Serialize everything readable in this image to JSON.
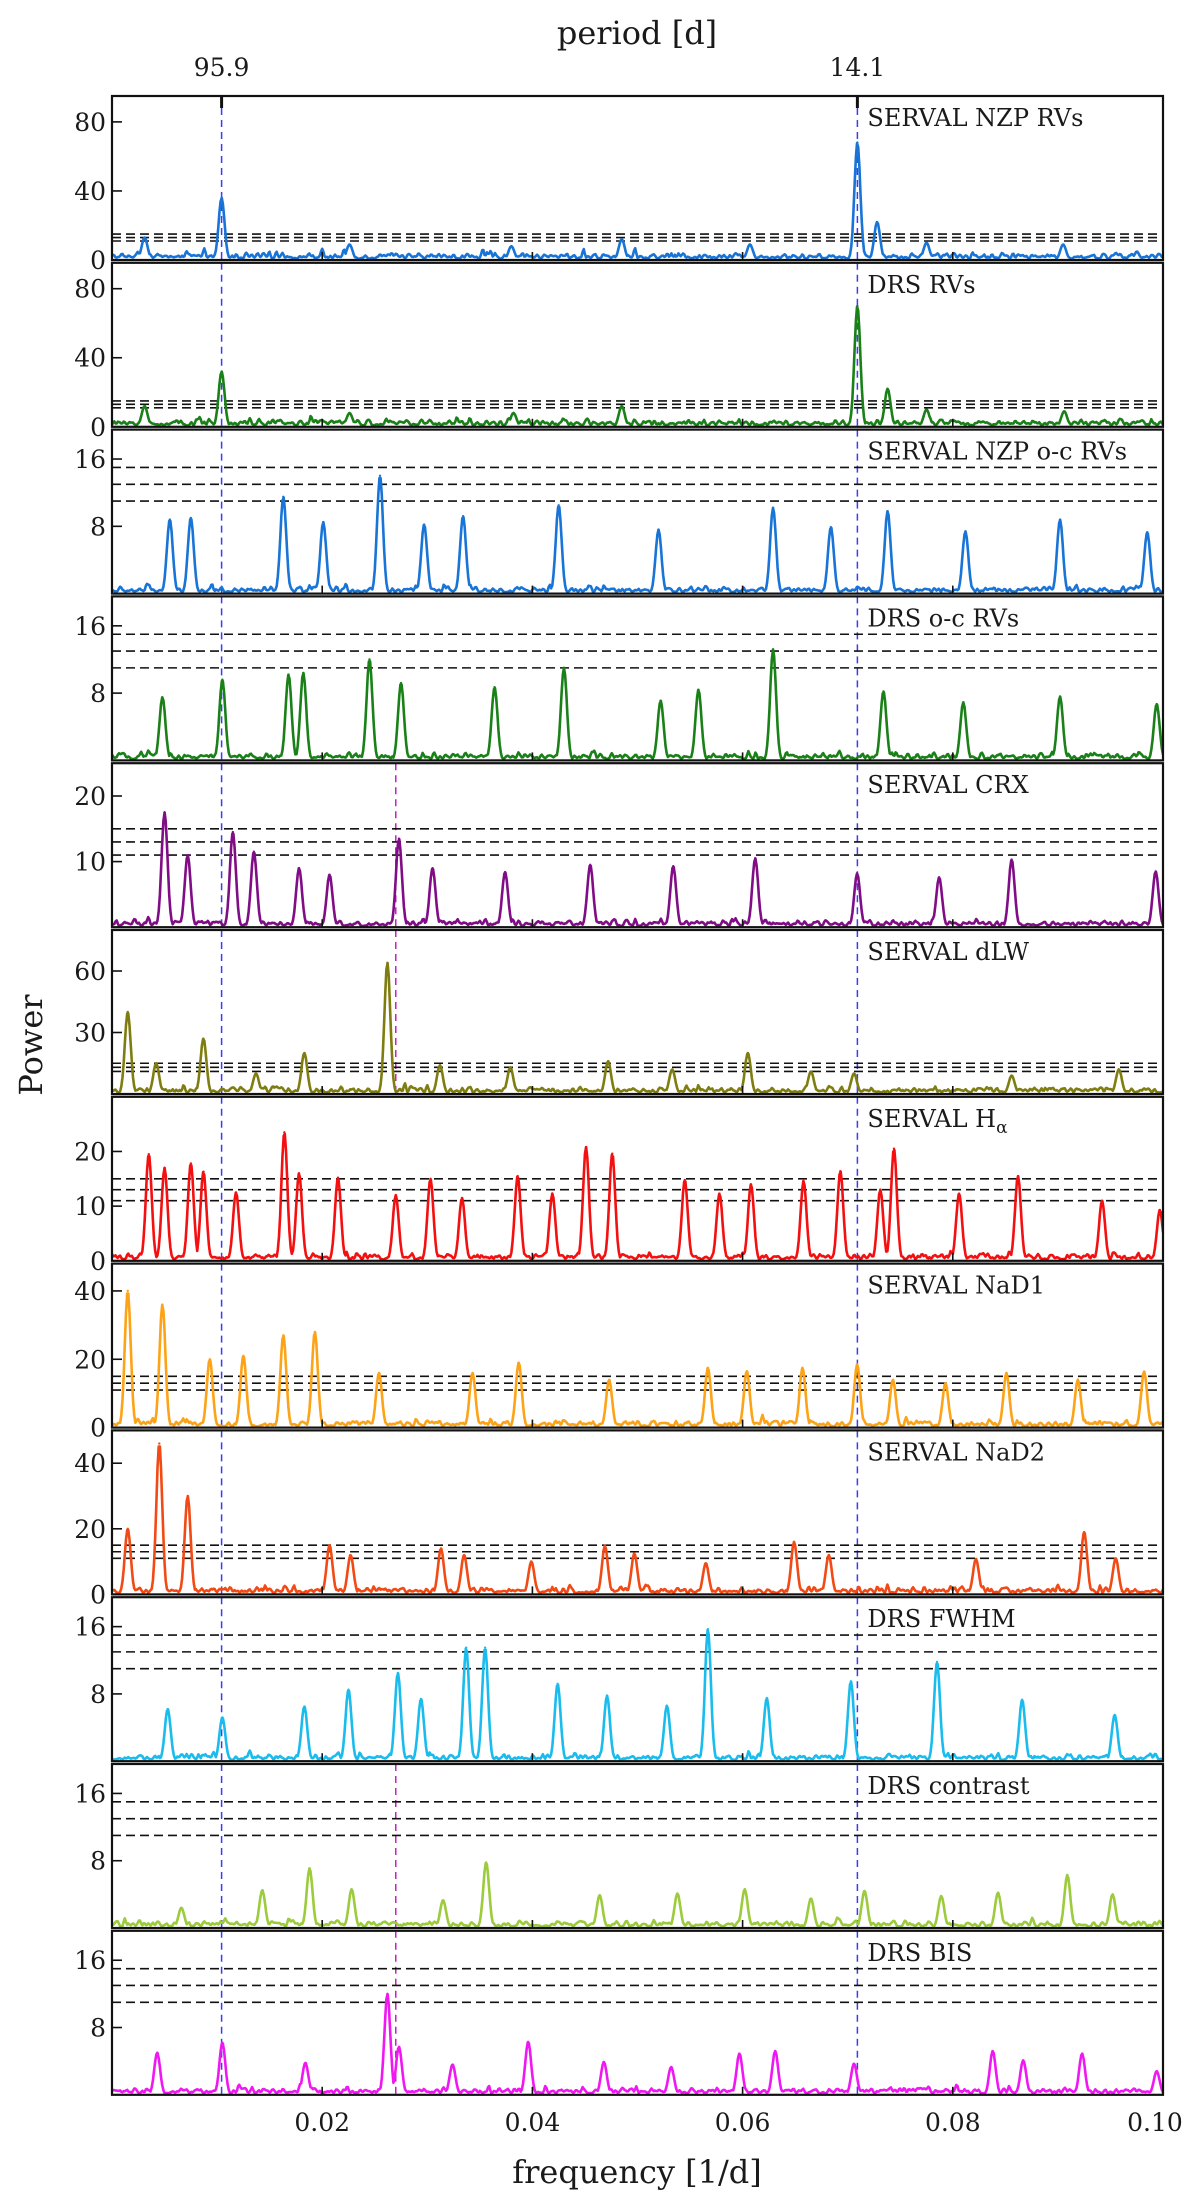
{
  "chart_data": {
    "type": "line",
    "xlabel": "frequency [1/d]",
    "ylabel": "Power",
    "top_axis_label": "period [d]",
    "top_ticks": [
      {
        "freq": 0.010428,
        "label": "95.9"
      },
      {
        "freq": 0.070922,
        "label": "14.1"
      }
    ],
    "xlim": [
      0.0,
      0.1
    ],
    "xticks": [
      0.02,
      0.04,
      0.06,
      0.08,
      0.1
    ],
    "xtick_labels": [
      "0.02",
      "0.04",
      "0.06",
      "0.08",
      "0.10"
    ],
    "vlines_blue": [
      0.010428,
      0.070922
    ],
    "vline_magenta": 0.027,
    "panels": [
      {
        "label": "SERVAL NZP RVs",
        "color": "#1874d6",
        "ylim": [
          0,
          95
        ],
        "yticks": [
          0,
          40,
          80
        ],
        "thresholds": [
          11,
          13,
          15
        ],
        "magenta": false,
        "peaks": [
          [
            0.010428,
            36
          ],
          [
            0.070922,
            68
          ],
          [
            0.0728,
            22
          ],
          [
            0.0485,
            12
          ],
          [
            0.0031,
            13
          ],
          [
            0.0775,
            10
          ],
          [
            0.0905,
            9
          ],
          [
            0.0226,
            9
          ],
          [
            0.038,
            8
          ],
          [
            0.0607,
            9
          ]
        ]
      },
      {
        "label": "DRS RVs",
        "color": "#1a8018",
        "ylim": [
          0,
          95
        ],
        "yticks": [
          0,
          40,
          80
        ],
        "thresholds": [
          11,
          13,
          15
        ],
        "magenta": false,
        "peaks": [
          [
            0.010428,
            32
          ],
          [
            0.070922,
            70
          ],
          [
            0.0738,
            22
          ],
          [
            0.0485,
            12
          ],
          [
            0.0031,
            12
          ],
          [
            0.0775,
            10
          ],
          [
            0.0906,
            9
          ],
          [
            0.0226,
            8
          ],
          [
            0.0382,
            8
          ]
        ]
      },
      {
        "label": "SERVAL NZP o-c RVs",
        "color": "#1874d6",
        "ylim": [
          0,
          19.5
        ],
        "yticks": [
          8,
          16
        ],
        "thresholds": [
          11,
          13,
          15
        ],
        "magenta": false,
        "peaks": [
          [
            0.0255,
            14
          ],
          [
            0.0163,
            11.5
          ],
          [
            0.0425,
            10.5
          ],
          [
            0.0629,
            10.2
          ],
          [
            0.0738,
            9.8
          ],
          [
            0.0055,
            8.8
          ],
          [
            0.0334,
            9.2
          ],
          [
            0.0902,
            8.8
          ],
          [
            0.0985,
            7.3
          ],
          [
            0.0201,
            8.5
          ],
          [
            0.052,
            7.6
          ],
          [
            0.0075,
            9
          ],
          [
            0.0684,
            7.9
          ],
          [
            0.0297,
            8.2
          ],
          [
            0.0812,
            7.4
          ]
        ]
      },
      {
        "label": "DRS o-c RVs",
        "color": "#1a8018",
        "ylim": [
          0,
          19.5
        ],
        "yticks": [
          8,
          16
        ],
        "thresholds": [
          11,
          13,
          15
        ],
        "magenta": false,
        "peaks": [
          [
            0.0629,
            13.2
          ],
          [
            0.0245,
            12
          ],
          [
            0.043,
            11
          ],
          [
            0.0168,
            10.2
          ],
          [
            0.0182,
            10.4
          ],
          [
            0.0105,
            9.6
          ],
          [
            0.0275,
            9.2
          ],
          [
            0.0364,
            8.7
          ],
          [
            0.0558,
            8.4
          ],
          [
            0.0734,
            8.2
          ],
          [
            0.0902,
            7.6
          ],
          [
            0.0994,
            6.7
          ],
          [
            0.0048,
            7.5
          ],
          [
            0.0522,
            7.1
          ],
          [
            0.081,
            6.9
          ]
        ]
      },
      {
        "label": "SERVAL CRX",
        "color": "#800d86",
        "ylim": [
          0,
          25
        ],
        "yticks": [
          10,
          20
        ],
        "thresholds": [
          11,
          13,
          15
        ],
        "magenta": true,
        "peaks": [
          [
            0.005,
            17.5
          ],
          [
            0.0115,
            14.5
          ],
          [
            0.0273,
            13.5
          ],
          [
            0.0072,
            11
          ],
          [
            0.0135,
            11.5
          ],
          [
            0.0612,
            10.5
          ],
          [
            0.0856,
            10.3
          ],
          [
            0.0993,
            8.5
          ],
          [
            0.0455,
            9.5
          ],
          [
            0.0534,
            9.3
          ],
          [
            0.0178,
            9
          ],
          [
            0.0207,
            8
          ],
          [
            0.0305,
            9
          ],
          [
            0.0374,
            8.4
          ],
          [
            0.0709,
            8.2
          ],
          [
            0.0787,
            7.6
          ]
        ]
      },
      {
        "label": "SERVAL dLW",
        "color": "#7f7d10",
        "ylim": [
          0,
          80
        ],
        "yticks": [
          30,
          60
        ],
        "thresholds": [
          11,
          13,
          15
        ],
        "magenta": true,
        "peaks": [
          [
            0.0262,
            64
          ],
          [
            0.0015,
            40
          ],
          [
            0.0087,
            27
          ],
          [
            0.0183,
            20
          ],
          [
            0.0605,
            20
          ],
          [
            0.0472,
            16
          ],
          [
            0.0312,
            14
          ],
          [
            0.0379,
            13
          ],
          [
            0.0533,
            12
          ],
          [
            0.0706,
            10
          ],
          [
            0.0856,
            9
          ],
          [
            0.0958,
            12
          ],
          [
            0.0042,
            15
          ],
          [
            0.0665,
            11
          ],
          [
            0.0137,
            10
          ]
        ]
      },
      {
        "label": "SERVAL H$\\alpha$",
        "label_main": "SERVAL H",
        "label_sub": "α",
        "color": "#f41010",
        "ylim": [
          0,
          30
        ],
        "yticks": [
          0,
          10,
          20
        ],
        "thresholds": [
          11,
          13,
          15
        ],
        "magenta": false,
        "peaks": [
          [
            0.0164,
            23.5
          ],
          [
            0.0451,
            20.8
          ],
          [
            0.0744,
            20.5
          ],
          [
            0.0035,
            19.5
          ],
          [
            0.0476,
            19.6
          ],
          [
            0.005,
            17
          ],
          [
            0.0075,
            17.8
          ],
          [
            0.0087,
            16.3
          ],
          [
            0.0178,
            16
          ],
          [
            0.0215,
            15.2
          ],
          [
            0.0386,
            15.5
          ],
          [
            0.0303,
            15
          ],
          [
            0.0545,
            14.8
          ],
          [
            0.0608,
            14
          ],
          [
            0.0658,
            14.6
          ],
          [
            0.0693,
            16.4
          ],
          [
            0.0731,
            13
          ],
          [
            0.0862,
            15.5
          ],
          [
            0.0118,
            12.5
          ],
          [
            0.027,
            12
          ],
          [
            0.0333,
            11.5
          ],
          [
            0.0419,
            12.3
          ],
          [
            0.0578,
            12.3
          ],
          [
            0.0806,
            12.3
          ],
          [
            0.0942,
            11
          ],
          [
            0.0997,
            9.3
          ]
        ]
      },
      {
        "label": "SERVAL NaD1",
        "color": "#fda317",
        "ylim": [
          0,
          48
        ],
        "yticks": [
          0,
          20,
          40
        ],
        "thresholds": [
          11,
          13,
          15
        ],
        "magenta": false,
        "peaks": [
          [
            0.0015,
            40
          ],
          [
            0.0048,
            36
          ],
          [
            0.0163,
            27
          ],
          [
            0.0193,
            28
          ],
          [
            0.0125,
            21
          ],
          [
            0.0093,
            20
          ],
          [
            0.0254,
            16
          ],
          [
            0.0387,
            19
          ],
          [
            0.0343,
            16
          ],
          [
            0.0567,
            17.5
          ],
          [
            0.0604,
            16.5
          ],
          [
            0.0657,
            17.5
          ],
          [
            0.0709,
            18.5
          ],
          [
            0.0851,
            16
          ],
          [
            0.0982,
            16.4
          ],
          [
            0.0743,
            14
          ],
          [
            0.0473,
            14
          ],
          [
            0.0793,
            13
          ],
          [
            0.0919,
            14
          ]
        ]
      },
      {
        "label": "SERVAL NaD2",
        "color": "#f24a15",
        "ylim": [
          0,
          50
        ],
        "yticks": [
          0,
          20,
          40
        ],
        "thresholds": [
          11,
          13,
          15
        ],
        "magenta": false,
        "peaks": [
          [
            0.0045,
            46
          ],
          [
            0.0072,
            30
          ],
          [
            0.0015,
            20
          ],
          [
            0.0925,
            19
          ],
          [
            0.0649,
            16
          ],
          [
            0.0207,
            15
          ],
          [
            0.0313,
            14
          ],
          [
            0.0469,
            14.8
          ],
          [
            0.0497,
            12.5
          ],
          [
            0.0335,
            12
          ],
          [
            0.0227,
            12
          ],
          [
            0.0682,
            12
          ],
          [
            0.0822,
            10.8
          ],
          [
            0.0955,
            11
          ],
          [
            0.0565,
            9.5
          ],
          [
            0.0399,
            10
          ]
        ]
      },
      {
        "label": "DRS FWHM",
        "color": "#19bced",
        "ylim": [
          0,
          19.5
        ],
        "yticks": [
          8,
          16
        ],
        "thresholds": [
          11,
          13,
          15
        ],
        "magenta": false,
        "peaks": [
          [
            0.0567,
            15.7
          ],
          [
            0.0337,
            13.5
          ],
          [
            0.0355,
            13.5
          ],
          [
            0.0785,
            11.8
          ],
          [
            0.0272,
            10.5
          ],
          [
            0.0703,
            9.5
          ],
          [
            0.0424,
            9.2
          ],
          [
            0.0225,
            8.5
          ],
          [
            0.0053,
            6.2
          ],
          [
            0.0183,
            6.5
          ],
          [
            0.0471,
            7.8
          ],
          [
            0.0623,
            7.5
          ],
          [
            0.0866,
            7.3
          ],
          [
            0.0954,
            5.5
          ],
          [
            0.0294,
            7.4
          ],
          [
            0.0528,
            6.6
          ],
          [
            0.0105,
            5.2
          ]
        ]
      },
      {
        "label": "DRS contrast",
        "color": "#9ccb3c",
        "ylim": [
          0,
          19.5
        ],
        "yticks": [
          8,
          16
        ],
        "thresholds": [
          11,
          13,
          15
        ],
        "magenta": true,
        "peaks": [
          [
            0.0356,
            7.8
          ],
          [
            0.0188,
            7.1
          ],
          [
            0.0909,
            6.3
          ],
          [
            0.0143,
            4.5
          ],
          [
            0.0228,
            4.6
          ],
          [
            0.0602,
            4.6
          ],
          [
            0.0716,
            4.4
          ],
          [
            0.0538,
            4.1
          ],
          [
            0.0464,
            3.9
          ],
          [
            0.0843,
            4.2
          ],
          [
            0.0315,
            3.3
          ],
          [
            0.0789,
            3.8
          ],
          [
            0.0952,
            4
          ],
          [
            0.0066,
            2.4
          ],
          [
            0.0665,
            3.5
          ]
        ]
      },
      {
        "label": "DRS BIS",
        "color": "#f018f2",
        "ylim": [
          0,
          19.5
        ],
        "yticks": [
          8,
          16
        ],
        "thresholds": [
          11,
          13,
          15
        ],
        "magenta": true,
        "peaks": [
          [
            0.0262,
            12
          ],
          [
            0.0105,
            6.2
          ],
          [
            0.0043,
            5
          ],
          [
            0.0396,
            6.3
          ],
          [
            0.0273,
            5.7
          ],
          [
            0.0631,
            5.2
          ],
          [
            0.0838,
            5.2
          ],
          [
            0.0184,
            3.8
          ],
          [
            0.0597,
            4.9
          ],
          [
            0.0867,
            4.1
          ],
          [
            0.0923,
            4.9
          ],
          [
            0.0468,
            3.9
          ],
          [
            0.0324,
            3.6
          ],
          [
            0.0706,
            3.7
          ],
          [
            0.0532,
            3.3
          ],
          [
            0.0994,
            2.8
          ]
        ]
      }
    ]
  }
}
